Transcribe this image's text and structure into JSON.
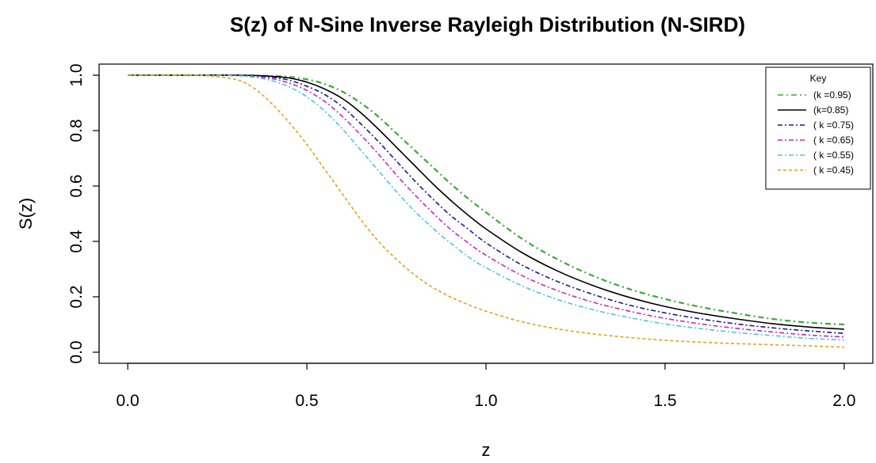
{
  "chart_data": {
    "type": "line",
    "title": "S(z) of N-Sine Inverse Rayleigh Distribution (N-SIRD)",
    "xlabel": "z",
    "ylabel": "S(z)",
    "xlim": [
      -0.08,
      2.08
    ],
    "ylim": [
      -0.04,
      1.04
    ],
    "xticks": [
      0.0,
      0.5,
      1.0,
      1.5,
      2.0
    ],
    "xtick_labels": [
      "0.0",
      "0.5",
      "1.0",
      "1.5",
      "2.0"
    ],
    "yticks": [
      0.0,
      0.2,
      0.4,
      0.6,
      0.8,
      1.0
    ],
    "ytick_labels": [
      "0.0",
      "0.2",
      "0.4",
      "0.6",
      "0.8",
      "1.0"
    ],
    "grid": false,
    "legend": {
      "title": "Key",
      "position": "top-right"
    },
    "x": [
      0.0,
      0.1,
      0.2,
      0.3,
      0.35,
      0.4,
      0.45,
      0.5,
      0.55,
      0.6,
      0.65,
      0.7,
      0.75,
      0.8,
      0.85,
      0.9,
      0.95,
      1.0,
      1.1,
      1.2,
      1.3,
      1.4,
      1.5,
      1.6,
      1.7,
      1.8,
      1.9,
      2.0
    ],
    "series": [
      {
        "name": "(k =0.95)",
        "color": "#3aaa35",
        "dash": "7,4,2,4",
        "values": [
          1.0,
          1.0,
          1.0,
          1.0,
          0.999,
          0.997,
          0.994,
          0.985,
          0.968,
          0.94,
          0.9,
          0.85,
          0.79,
          0.73,
          0.67,
          0.61,
          0.555,
          0.505,
          0.41,
          0.335,
          0.275,
          0.228,
          0.192,
          0.163,
          0.14,
          0.12,
          0.107,
          0.1
        ]
      },
      {
        "name": "(k=0.85)",
        "color": "#000000",
        "dash": "",
        "values": [
          1.0,
          1.0,
          1.0,
          1.0,
          0.999,
          0.996,
          0.99,
          0.975,
          0.95,
          0.915,
          0.865,
          0.805,
          0.74,
          0.675,
          0.61,
          0.55,
          0.495,
          0.445,
          0.36,
          0.293,
          0.24,
          0.198,
          0.165,
          0.14,
          0.12,
          0.103,
          0.091,
          0.083
        ]
      },
      {
        "name": "( k =0.75)",
        "color": "#1a1a8c",
        "dash": "6,3,2,3",
        "values": [
          1.0,
          1.0,
          1.0,
          0.999,
          0.997,
          0.993,
          0.982,
          0.96,
          0.93,
          0.885,
          0.825,
          0.76,
          0.69,
          0.62,
          0.555,
          0.495,
          0.445,
          0.395,
          0.315,
          0.255,
          0.208,
          0.17,
          0.142,
          0.12,
          0.102,
          0.088,
          0.077,
          0.068
        ]
      },
      {
        "name": "( k =0.65)",
        "color": "#c02bb5",
        "dash": "6,3,2,3",
        "values": [
          1.0,
          1.0,
          1.0,
          0.999,
          0.996,
          0.988,
          0.972,
          0.945,
          0.905,
          0.85,
          0.785,
          0.715,
          0.64,
          0.57,
          0.505,
          0.445,
          0.395,
          0.35,
          0.277,
          0.222,
          0.18,
          0.148,
          0.122,
          0.102,
          0.086,
          0.073,
          0.062,
          0.055
        ]
      },
      {
        "name": "( k =0.55)",
        "color": "#52c2e0",
        "dash": "6,3,2,3",
        "values": [
          1.0,
          1.0,
          1.0,
          0.998,
          0.993,
          0.981,
          0.958,
          0.922,
          0.87,
          0.805,
          0.73,
          0.655,
          0.58,
          0.51,
          0.45,
          0.395,
          0.345,
          0.305,
          0.24,
          0.19,
          0.153,
          0.125,
          0.102,
          0.085,
          0.071,
          0.06,
          0.05,
          0.044
        ]
      },
      {
        "name": "( k =0.45)",
        "color": "#e5a11c",
        "dash": "4,3",
        "values": [
          1.0,
          1.0,
          1.0,
          0.985,
          0.955,
          0.9,
          0.83,
          0.75,
          0.66,
          0.57,
          0.48,
          0.4,
          0.335,
          0.28,
          0.235,
          0.2,
          0.172,
          0.148,
          0.11,
          0.084,
          0.066,
          0.053,
          0.043,
          0.036,
          0.031,
          0.027,
          0.023,
          0.018
        ]
      }
    ]
  }
}
